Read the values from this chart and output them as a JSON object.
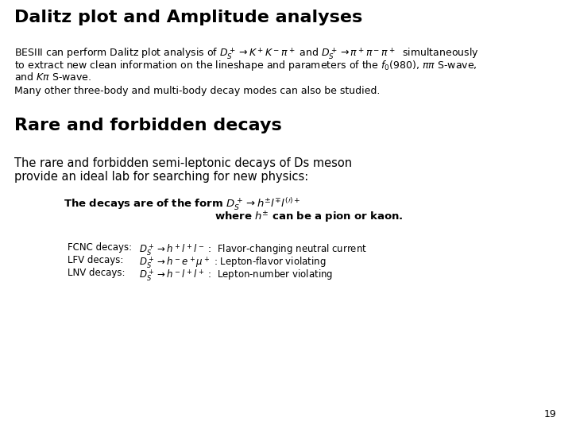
{
  "title1": "Dalitz plot and Amplitude analyses",
  "title2": "Rare and forbidden decays",
  "body1_line1": "BESIII can perform Dalitz plot analysis of $D_S^+ \\rightarrow K^+K^-\\pi^+$ and $D_S^+ \\rightarrow \\pi^+\\pi^-\\pi^+$  simultaneously",
  "body1_line2": "to extract new clean information on the lineshape and parameters of the $f_0(980)$, $\\pi\\pi$ S-wave,",
  "body1_line3": "and $K\\pi$ S-wave.",
  "body1_extra": "Many other three-body and multi-body decay modes can also be studied.",
  "body2_line1": "The rare and forbidden semi-leptonic decays of Ds meson",
  "body2_line2": "provide an ideal lab for searching for new physics:",
  "decay_form_bold": "The decays are of the form ",
  "decay_form_math": "$D_S^+ \\rightarrow h^{\\pm}l^{\\mp}l^{(\\prime)+}$",
  "decay_where_bold": "where ",
  "decay_where_math": "$h^{\\pm}$",
  "decay_where_rest": " can be a pion or kaon.",
  "fcnc_label": "FCNC decays:",
  "fcnc_formula": "$D_S^+ \\rightarrow h^+l^+l^-$",
  "fcnc_desc": " :  Flavor-changing neutral current",
  "lfv_label": "LFV decays:",
  "lfv_formula": "$D_S^+ \\rightarrow h^-e^+\\mu^+$",
  "lfv_desc": " : Lepton-flavor violating",
  "lnv_label": "LNV decays:",
  "lnv_formula": "$D_S^+ \\rightarrow h^-l^+l^+$",
  "lnv_desc": " :  Lepton-number violating",
  "page_number": "19",
  "bg_color": "#ffffff",
  "text_color": "#000000",
  "title1_fontsize": 16,
  "title2_fontsize": 16,
  "body_fontsize": 9,
  "small_fontsize": 8.5
}
